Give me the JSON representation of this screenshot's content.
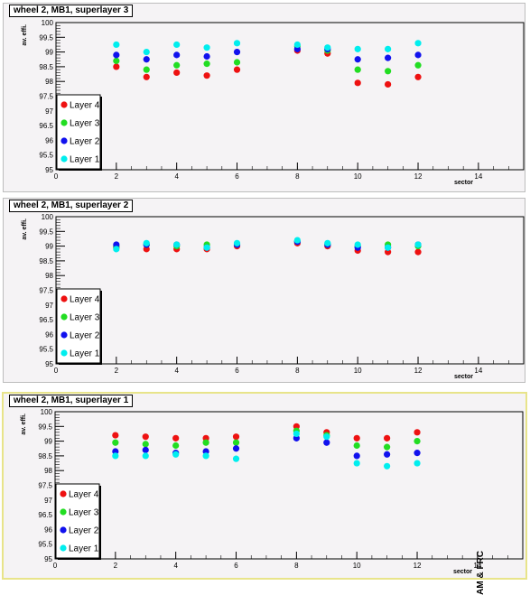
{
  "chart_data": [
    {
      "type": "scatter",
      "title": "wheel 2, MB1, superlayer 3",
      "xlabel": "sector",
      "ylabel": "av. effi.",
      "xlim": [
        0,
        15.5
      ],
      "ylim": [
        95,
        100
      ],
      "xticks": [
        0,
        2,
        4,
        6,
        8,
        10,
        12,
        14
      ],
      "yticks": [
        95,
        95.5,
        96,
        96.5,
        97,
        97.5,
        98,
        98.5,
        99,
        99.5,
        100
      ],
      "legend_position": "bottom-left",
      "series": [
        {
          "name": "Layer 4",
          "color": "#ee1111",
          "x": [
            2,
            3,
            4,
            5,
            6,
            8,
            9,
            10,
            11,
            12
          ],
          "y": [
            98.5,
            98.15,
            98.3,
            98.2,
            98.4,
            99.05,
            98.95,
            97.95,
            97.9,
            98.15
          ]
        },
        {
          "name": "Layer 3",
          "color": "#22dd22",
          "x": [
            2,
            3,
            4,
            5,
            6,
            8,
            9,
            10,
            11,
            12
          ],
          "y": [
            98.7,
            98.4,
            98.55,
            98.6,
            98.65,
            99.2,
            99.05,
            98.4,
            98.35,
            98.55
          ]
        },
        {
          "name": "Layer 2",
          "color": "#1111ee",
          "x": [
            2,
            3,
            4,
            5,
            6,
            8,
            9,
            10,
            11,
            12
          ],
          "y": [
            98.9,
            98.75,
            98.9,
            98.85,
            99.0,
            99.1,
            99.1,
            98.75,
            98.8,
            98.9
          ]
        },
        {
          "name": "Layer 1",
          "color": "#00eeee",
          "x": [
            2,
            3,
            4,
            5,
            6,
            8,
            9,
            10,
            11,
            12
          ],
          "y": [
            99.25,
            99.0,
            99.25,
            99.15,
            99.3,
            99.25,
            99.15,
            99.1,
            99.1,
            99.3
          ]
        }
      ]
    },
    {
      "type": "scatter",
      "title": "wheel 2, MB1, superlayer 2",
      "xlabel": "sector",
      "ylabel": "av. effi.",
      "xlim": [
        0,
        15.5
      ],
      "ylim": [
        95,
        100
      ],
      "xticks": [
        0,
        2,
        4,
        6,
        8,
        10,
        12,
        14
      ],
      "yticks": [
        95,
        95.5,
        96,
        96.5,
        97,
        97.5,
        98,
        98.5,
        99,
        99.5,
        100
      ],
      "legend_position": "bottom-left",
      "series": [
        {
          "name": "Layer 4",
          "color": "#ee1111",
          "x": [
            2,
            3,
            4,
            5,
            6,
            8,
            9,
            10,
            11,
            12
          ],
          "y": [
            98.95,
            98.9,
            98.9,
            98.9,
            99.0,
            99.1,
            99.0,
            98.85,
            98.8,
            98.8
          ]
        },
        {
          "name": "Layer 3",
          "color": "#22dd22",
          "x": [
            2,
            3,
            4,
            5,
            6,
            8,
            9,
            10,
            11,
            12
          ],
          "y": [
            99.0,
            99.05,
            99.0,
            99.05,
            99.05,
            99.15,
            99.05,
            99.0,
            99.05,
            99.0
          ]
        },
        {
          "name": "Layer 2",
          "color": "#1111ee",
          "x": [
            2,
            3,
            4,
            5,
            6,
            8,
            9,
            10,
            11,
            12
          ],
          "y": [
            99.05,
            99.05,
            99.05,
            98.95,
            99.05,
            99.15,
            99.05,
            98.95,
            98.95,
            99.05
          ]
        },
        {
          "name": "Layer 1",
          "color": "#00eeee",
          "x": [
            2,
            3,
            4,
            5,
            6,
            8,
            9,
            10,
            11,
            12
          ],
          "y": [
            98.9,
            99.1,
            99.05,
            98.95,
            99.1,
            99.2,
            99.1,
            99.05,
            98.95,
            99.05
          ]
        }
      ]
    },
    {
      "type": "scatter",
      "title": "wheel 2, MB1, superlayer 1",
      "xlabel": "sector",
      "ylabel": "av. effi.",
      "xlim": [
        0,
        15.5
      ],
      "ylim": [
        95,
        100
      ],
      "xticks": [
        0,
        2,
        4,
        6,
        8,
        10,
        12,
        14
      ],
      "yticks": [
        95,
        95.5,
        96,
        96.5,
        97,
        97.5,
        98,
        98.5,
        99,
        99.5,
        100
      ],
      "legend_position": "bottom-left",
      "side_label": "AM & FRC",
      "series": [
        {
          "name": "Layer 4",
          "color": "#ee1111",
          "x": [
            2,
            3,
            4,
            5,
            6,
            8,
            9,
            10,
            11,
            12
          ],
          "y": [
            99.2,
            99.15,
            99.1,
            99.1,
            99.15,
            99.5,
            99.3,
            99.1,
            99.1,
            99.3
          ]
        },
        {
          "name": "Layer 3",
          "color": "#22dd22",
          "x": [
            2,
            3,
            4,
            5,
            6,
            8,
            9,
            10,
            11,
            12
          ],
          "y": [
            98.95,
            98.9,
            98.85,
            98.95,
            98.95,
            99.35,
            99.2,
            98.85,
            98.8,
            99.0
          ]
        },
        {
          "name": "Layer 2",
          "color": "#1111ee",
          "x": [
            2,
            3,
            4,
            5,
            6,
            8,
            9,
            10,
            11,
            12
          ],
          "y": [
            98.65,
            98.7,
            98.6,
            98.65,
            98.75,
            99.1,
            98.95,
            98.5,
            98.55,
            98.6
          ]
        },
        {
          "name": "Layer 1",
          "color": "#00eeee",
          "x": [
            2,
            3,
            4,
            5,
            6,
            8,
            9,
            10,
            11,
            12
          ],
          "y": [
            98.5,
            98.5,
            98.55,
            98.5,
            98.4,
            99.25,
            99.15,
            98.25,
            98.15,
            98.25
          ]
        }
      ]
    }
  ]
}
